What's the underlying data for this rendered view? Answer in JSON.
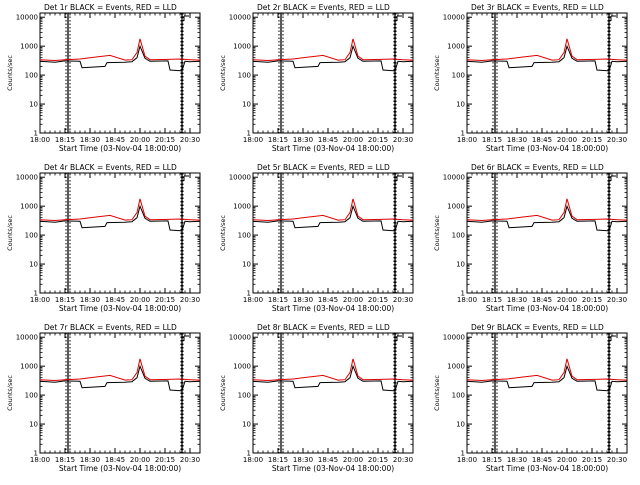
{
  "chart_data": [
    {
      "type": "line",
      "title": "Det 1r BLACK = Events, RED = LLD",
      "xlabel": "Start Time (03-Nov-04 18:00:00)",
      "ylabel": "Counts/sec",
      "x_tick_labels": [
        "18:00",
        "18:15",
        "18:30",
        "18:45",
        "20:00",
        "20:15",
        "20:30"
      ],
      "y_tick_labels": [
        "1",
        "10",
        "100",
        "1000",
        "10000"
      ],
      "y_scale": "log",
      "ylim": [
        1,
        14000
      ],
      "xlim_minutes_from_start": [
        0,
        160
      ],
      "vertical_markers_minutes": [
        28,
        142
      ],
      "series": [
        {
          "name": "Events",
          "color": "#000000",
          "x": [
            0,
            15,
            25,
            40,
            42,
            65,
            67,
            85,
            92,
            97,
            100,
            105,
            110,
            128,
            130,
            142,
            145,
            150,
            160
          ],
          "y": [
            300,
            280,
            310,
            300,
            180,
            200,
            270,
            280,
            290,
            400,
            1000,
            380,
            300,
            310,
            150,
            140,
            300,
            290,
            300
          ]
        },
        {
          "name": "LLD",
          "color": "#dd0000",
          "x": [
            0,
            15,
            25,
            40,
            55,
            70,
            85,
            92,
            97,
            100,
            105,
            110,
            128,
            140,
            145,
            150,
            160
          ],
          "y": [
            340,
            320,
            340,
            360,
            420,
            480,
            330,
            340,
            600,
            1800,
            450,
            340,
            350,
            360,
            350,
            340,
            330
          ]
        }
      ]
    },
    {
      "type": "line",
      "title": "Det 2r BLACK = Events, RED = LLD",
      "xlabel": "Start Time (03-Nov-04 18:00:00)",
      "ylabel": "Counts/sec",
      "x_tick_labels": [
        "18:00",
        "18:15",
        "18:30",
        "18:45",
        "20:00",
        "20:15",
        "20:30"
      ],
      "y_tick_labels": [
        "1",
        "10",
        "100",
        "1000",
        "10000"
      ],
      "y_scale": "log",
      "ylim": [
        1,
        14000
      ],
      "xlim_minutes_from_start": [
        0,
        160
      ],
      "vertical_markers_minutes": [
        28,
        142
      ],
      "series": [
        {
          "name": "Events",
          "color": "#000000",
          "x": [
            0,
            15,
            25,
            40,
            42,
            65,
            67,
            85,
            92,
            97,
            100,
            105,
            110,
            128,
            130,
            142,
            145,
            150,
            160
          ],
          "y": [
            300,
            280,
            310,
            300,
            180,
            200,
            270,
            280,
            290,
            400,
            1000,
            380,
            300,
            310,
            150,
            140,
            300,
            290,
            300
          ]
        },
        {
          "name": "LLD",
          "color": "#dd0000",
          "x": [
            0,
            15,
            25,
            40,
            55,
            70,
            85,
            92,
            97,
            100,
            105,
            110,
            128,
            140,
            145,
            150,
            160
          ],
          "y": [
            340,
            320,
            340,
            360,
            420,
            480,
            330,
            340,
            600,
            1800,
            450,
            340,
            350,
            360,
            350,
            340,
            330
          ]
        }
      ]
    },
    {
      "type": "line",
      "title": "Det 3r BLACK = Events, RED = LLD",
      "xlabel": "Start Time (03-Nov-04 18:00:00)",
      "ylabel": "Counts/sec",
      "x_tick_labels": [
        "18:00",
        "18:15",
        "18:30",
        "18:45",
        "20:00",
        "20:15",
        "20:30"
      ],
      "y_tick_labels": [
        "1",
        "10",
        "100",
        "1000",
        "10000"
      ],
      "y_scale": "log",
      "ylim": [
        1,
        14000
      ],
      "xlim_minutes_from_start": [
        0,
        160
      ],
      "vertical_markers_minutes": [
        28,
        142
      ],
      "series": [
        {
          "name": "Events",
          "color": "#000000",
          "x": [
            0,
            15,
            25,
            40,
            42,
            65,
            67,
            85,
            92,
            97,
            100,
            105,
            110,
            128,
            130,
            142,
            145,
            150,
            160
          ],
          "y": [
            300,
            280,
            310,
            300,
            180,
            200,
            270,
            280,
            290,
            400,
            1000,
            380,
            300,
            310,
            150,
            140,
            300,
            290,
            300
          ]
        },
        {
          "name": "LLD",
          "color": "#dd0000",
          "x": [
            0,
            15,
            25,
            40,
            55,
            70,
            85,
            92,
            97,
            100,
            105,
            110,
            128,
            140,
            145,
            150,
            160
          ],
          "y": [
            340,
            320,
            340,
            360,
            420,
            480,
            330,
            340,
            600,
            1800,
            450,
            340,
            350,
            360,
            350,
            340,
            330
          ]
        }
      ]
    },
    {
      "type": "line",
      "title": "Det 4r BLACK = Events, RED = LLD",
      "xlabel": "Start Time (03-Nov-04 18:00:00)",
      "ylabel": "Counts/sec",
      "x_tick_labels": [
        "18:00",
        "18:15",
        "18:30",
        "18:45",
        "20:00",
        "20:15",
        "20:30"
      ],
      "y_tick_labels": [
        "1",
        "10",
        "100",
        "1000",
        "10000"
      ],
      "y_scale": "log",
      "ylim": [
        1,
        14000
      ],
      "xlim_minutes_from_start": [
        0,
        160
      ],
      "vertical_markers_minutes": [
        28,
        142
      ],
      "series": [
        {
          "name": "Events",
          "color": "#000000",
          "x": [
            0,
            15,
            25,
            40,
            42,
            65,
            67,
            85,
            92,
            97,
            100,
            105,
            110,
            128,
            130,
            142,
            145,
            150,
            160
          ],
          "y": [
            300,
            280,
            310,
            300,
            180,
            200,
            270,
            280,
            290,
            400,
            1000,
            380,
            300,
            310,
            150,
            140,
            300,
            290,
            300
          ]
        },
        {
          "name": "LLD",
          "color": "#dd0000",
          "x": [
            0,
            15,
            25,
            40,
            55,
            70,
            85,
            92,
            97,
            100,
            105,
            110,
            128,
            140,
            145,
            150,
            160
          ],
          "y": [
            340,
            320,
            340,
            360,
            420,
            480,
            330,
            340,
            600,
            1800,
            450,
            340,
            350,
            360,
            350,
            340,
            330
          ]
        }
      ]
    },
    {
      "type": "line",
      "title": "Det 5r BLACK = Events, RED = LLD",
      "xlabel": "Start Time (03-Nov-04 18:00:00)",
      "ylabel": "Counts/sec",
      "x_tick_labels": [
        "18:00",
        "18:15",
        "18:30",
        "18:45",
        "20:00",
        "20:15",
        "20:30"
      ],
      "y_tick_labels": [
        "1",
        "10",
        "100",
        "1000",
        "10000"
      ],
      "y_scale": "log",
      "ylim": [
        1,
        14000
      ],
      "xlim_minutes_from_start": [
        0,
        160
      ],
      "vertical_markers_minutes": [
        28,
        142
      ],
      "series": [
        {
          "name": "Events",
          "color": "#000000",
          "x": [
            0,
            15,
            25,
            40,
            42,
            65,
            67,
            85,
            92,
            97,
            100,
            105,
            110,
            128,
            130,
            142,
            145,
            150,
            160
          ],
          "y": [
            300,
            280,
            310,
            300,
            180,
            200,
            270,
            280,
            290,
            400,
            1000,
            380,
            300,
            310,
            150,
            140,
            300,
            290,
            300
          ]
        },
        {
          "name": "LLD",
          "color": "#dd0000",
          "x": [
            0,
            15,
            25,
            40,
            55,
            70,
            85,
            92,
            97,
            100,
            105,
            110,
            128,
            140,
            145,
            150,
            160
          ],
          "y": [
            340,
            320,
            340,
            360,
            420,
            480,
            330,
            340,
            600,
            1800,
            450,
            340,
            350,
            360,
            350,
            340,
            330
          ]
        }
      ]
    },
    {
      "type": "line",
      "title": "Det 6r BLACK = Events, RED = LLD",
      "xlabel": "Start Time (03-Nov-04 18:00:00)",
      "ylabel": "Counts/sec",
      "x_tick_labels": [
        "18:00",
        "18:15",
        "18:30",
        "18:45",
        "20:00",
        "20:15",
        "20:30"
      ],
      "y_tick_labels": [
        "1",
        "10",
        "100",
        "1000",
        "10000"
      ],
      "y_scale": "log",
      "ylim": [
        1,
        14000
      ],
      "xlim_minutes_from_start": [
        0,
        160
      ],
      "vertical_markers_minutes": [
        28,
        142
      ],
      "series": [
        {
          "name": "Events",
          "color": "#000000",
          "x": [
            0,
            15,
            25,
            40,
            42,
            65,
            67,
            85,
            92,
            97,
            100,
            105,
            110,
            128,
            130,
            142,
            145,
            150,
            160
          ],
          "y": [
            300,
            280,
            310,
            300,
            180,
            200,
            270,
            280,
            290,
            400,
            1000,
            380,
            300,
            310,
            150,
            140,
            300,
            290,
            300
          ]
        },
        {
          "name": "LLD",
          "color": "#dd0000",
          "x": [
            0,
            15,
            25,
            40,
            55,
            70,
            85,
            92,
            97,
            100,
            105,
            110,
            128,
            140,
            145,
            150,
            160
          ],
          "y": [
            340,
            320,
            340,
            360,
            420,
            480,
            330,
            340,
            600,
            1800,
            450,
            340,
            350,
            360,
            350,
            340,
            330
          ]
        }
      ]
    },
    {
      "type": "line",
      "title": "Det 7r BLACK = Events, RED = LLD",
      "xlabel": "Start Time (03-Nov-04 18:00:00)",
      "ylabel": "Counts/sec",
      "x_tick_labels": [
        "18:00",
        "18:15",
        "18:30",
        "18:45",
        "20:00",
        "20:15",
        "20:30"
      ],
      "y_tick_labels": [
        "1",
        "10",
        "100",
        "1000",
        "10000"
      ],
      "y_scale": "log",
      "ylim": [
        1,
        14000
      ],
      "xlim_minutes_from_start": [
        0,
        160
      ],
      "vertical_markers_minutes": [
        28,
        142
      ],
      "series": [
        {
          "name": "Events",
          "color": "#000000",
          "x": [
            0,
            15,
            25,
            40,
            42,
            65,
            67,
            85,
            92,
            97,
            100,
            105,
            110,
            128,
            130,
            142,
            145,
            150,
            160
          ],
          "y": [
            300,
            280,
            310,
            300,
            180,
            200,
            270,
            280,
            290,
            400,
            1000,
            380,
            300,
            310,
            150,
            140,
            300,
            290,
            300
          ]
        },
        {
          "name": "LLD",
          "color": "#dd0000",
          "x": [
            0,
            15,
            25,
            40,
            55,
            70,
            85,
            92,
            97,
            100,
            105,
            110,
            128,
            140,
            145,
            150,
            160
          ],
          "y": [
            340,
            320,
            340,
            360,
            420,
            480,
            330,
            340,
            600,
            1800,
            450,
            340,
            350,
            360,
            350,
            340,
            330
          ]
        }
      ]
    },
    {
      "type": "line",
      "title": "Det 8r BLACK = Events, RED = LLD",
      "xlabel": "Start Time (03-Nov-04 18:00:00)",
      "ylabel": "Counts/sec",
      "x_tick_labels": [
        "18:00",
        "18:15",
        "18:30",
        "18:45",
        "20:00",
        "20:15",
        "20:30"
      ],
      "y_tick_labels": [
        "1",
        "10",
        "100",
        "1000",
        "10000"
      ],
      "y_scale": "log",
      "ylim": [
        1,
        14000
      ],
      "xlim_minutes_from_start": [
        0,
        160
      ],
      "vertical_markers_minutes": [
        28,
        142
      ],
      "series": [
        {
          "name": "Events",
          "color": "#000000",
          "x": [
            0,
            15,
            25,
            40,
            42,
            65,
            67,
            85,
            92,
            97,
            100,
            105,
            110,
            128,
            130,
            142,
            145,
            150,
            160
          ],
          "y": [
            300,
            280,
            310,
            300,
            180,
            200,
            270,
            280,
            290,
            400,
            1000,
            380,
            300,
            310,
            150,
            140,
            300,
            290,
            300
          ]
        },
        {
          "name": "LLD",
          "color": "#dd0000",
          "x": [
            0,
            15,
            25,
            40,
            55,
            70,
            85,
            92,
            97,
            100,
            105,
            110,
            128,
            140,
            145,
            150,
            160
          ],
          "y": [
            340,
            320,
            340,
            360,
            420,
            480,
            330,
            340,
            600,
            1800,
            450,
            340,
            350,
            360,
            350,
            340,
            330
          ]
        }
      ]
    },
    {
      "type": "line",
      "title": "Det 9r BLACK = Events, RED = LLD",
      "xlabel": "Start Time (03-Nov-04 18:00:00)",
      "ylabel": "Counts/sec",
      "x_tick_labels": [
        "18:00",
        "18:15",
        "18:30",
        "18:45",
        "20:00",
        "20:15",
        "20:30"
      ],
      "y_tick_labels": [
        "1",
        "10",
        "100",
        "1000",
        "10000"
      ],
      "y_scale": "log",
      "ylim": [
        1,
        14000
      ],
      "xlim_minutes_from_start": [
        0,
        160
      ],
      "vertical_markers_minutes": [
        28,
        142
      ],
      "series": [
        {
          "name": "Events",
          "color": "#000000",
          "x": [
            0,
            15,
            25,
            40,
            42,
            65,
            67,
            85,
            92,
            97,
            100,
            105,
            110,
            128,
            130,
            142,
            145,
            150,
            160
          ],
          "y": [
            300,
            280,
            310,
            300,
            180,
            200,
            270,
            280,
            290,
            400,
            1000,
            380,
            300,
            310,
            150,
            140,
            300,
            290,
            300
          ]
        },
        {
          "name": "LLD",
          "color": "#dd0000",
          "x": [
            0,
            15,
            25,
            40,
            55,
            70,
            85,
            92,
            97,
            100,
            105,
            110,
            128,
            140,
            145,
            150,
            160
          ],
          "y": [
            340,
            320,
            340,
            360,
            420,
            480,
            330,
            340,
            600,
            1800,
            450,
            340,
            350,
            360,
            350,
            340,
            330
          ]
        }
      ]
    }
  ]
}
